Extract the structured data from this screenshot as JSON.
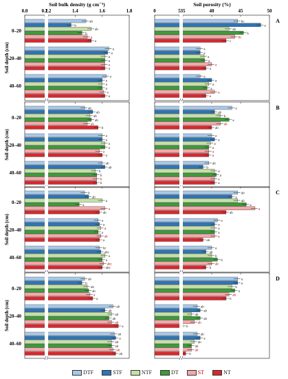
{
  "chart_data": {
    "type": "bar",
    "orientation": "horizontal",
    "top_axis_titles": {
      "left": "Soil bulk density (g cm⁻³)",
      "right": "Soil porosity (%)"
    },
    "ylabel": "Soil depth (cm)",
    "categories": [
      "0–20",
      "20–40",
      "40–60"
    ],
    "treatments": [
      "DTF",
      "STF",
      "NTF",
      "DT",
      "ST",
      "NT"
    ],
    "colors": {
      "DTF": "#a9c9e8",
      "STF": "#2e75b6",
      "NTF": "#c5e0a5",
      "DT": "#3f9a3a",
      "ST": "#f4a8a8",
      "NT": "#d7282f"
    },
    "label_colors": {
      "DTF": "#1a1a1a",
      "STF": "#1a1a1a",
      "NTF": "#1a1a1a",
      "DT": "#1a1a1a",
      "ST": "#c00000",
      "NT": "#1a1a1a"
    },
    "bulk_density_axis": {
      "ticks": [
        "0.0",
        "0.2",
        "1.2",
        "1.4",
        "1.6",
        "1.8"
      ],
      "break_between": [
        "0.2",
        "1.2"
      ]
    },
    "porosity_axis": {
      "ticks": [
        "0",
        "5",
        "35",
        "40",
        "45",
        "50"
      ],
      "break_between": [
        "5",
        "35"
      ]
    },
    "panels": [
      {
        "label": "A",
        "bulk_density": {
          "0–20": {
            "values": [
              1.48,
              1.37,
              1.52,
              1.45,
              1.49,
              1.52
            ],
            "letters": [
              "ab",
              "b",
              "ab",
              "b",
              "a",
              "a"
            ]
          },
          "20–40": {
            "values": [
              1.65,
              1.64,
              1.62,
              1.62,
              1.62,
              1.62
            ],
            "letters": [
              "a",
              "a",
              "a",
              "a",
              "a",
              "a"
            ]
          },
          "40–60": {
            "values": [
              1.63,
              1.6,
              1.6,
              1.6,
              1.61,
              1.62
            ],
            "letters": [
              "a",
              "a",
              "a",
              "a",
              "a",
              "a"
            ]
          }
        },
        "porosity": {
          "0–20": {
            "values": [
              44.5,
              48.5,
              43.0,
              45.5,
              44.0,
              42.5
            ],
            "letters": [
              "bc",
              "a",
              "ab",
              "b",
              "bc",
              "c"
            ]
          },
          "20–40": {
            "values": [
              38.0,
              38.0,
              38.7,
              38.8,
              40.0,
              39.0
            ],
            "letters": [
              "a",
              "a",
              "a",
              "a",
              "a",
              "a"
            ]
          },
          "40–60": {
            "values": [
              38.0,
              40.0,
              39.5,
              39.2,
              40.5,
              39.0
            ],
            "letters": [
              "a",
              "a",
              "a",
              "a",
              "a",
              "a"
            ]
          }
        }
      },
      {
        "label": "B",
        "bulk_density": {
          "0–20": {
            "values": [
              1.47,
              1.53,
              1.51,
              1.52,
              1.49,
              1.57
            ],
            "letters": [
              "ab",
              "ab",
              "ab",
              "ab",
              "ab",
              "b"
            ]
          },
          "20–40": {
            "values": [
              1.6,
              1.6,
              1.62,
              1.62,
              1.58,
              1.6
            ],
            "letters": [
              "a",
              "a",
              "a",
              "a",
              "a",
              "a"
            ]
          },
          "40–60": {
            "values": [
              1.6,
              1.62,
              1.55,
              1.56,
              1.56,
              1.56
            ],
            "letters": [
              "ab",
              "ab",
              "b",
              "b",
              "b",
              "b"
            ]
          }
        },
        "porosity": {
          "0–20": {
            "values": [
              43.5,
              40.5,
              41.5,
              43.0,
              41.5,
              40.0
            ],
            "letters": [
              "a",
              "ab",
              "b",
              "a",
              "ab",
              "ab"
            ]
          },
          "20–40": {
            "values": [
              40.0,
              40.5,
              39.8,
              39.5,
              39.5,
              39.5
            ],
            "letters": [
              "a",
              "a",
              "a",
              "a",
              "a",
              "a"
            ]
          },
          "40–60": {
            "values": [
              39.5,
              38.5,
              40.5,
              40.8,
              40.5,
              40.5
            ],
            "letters": [
              "ab",
              "b",
              "a",
              "a",
              "a",
              "a"
            ]
          }
        }
      },
      {
        "label": "C",
        "bulk_density": {
          "0–20": {
            "values": [
              1.47,
              1.5,
              1.6,
              1.43,
              1.62,
              1.58
            ],
            "letters": [
              "b",
              "ab",
              "a",
              "a",
              "a",
              "ab"
            ]
          },
          "20–40": {
            "values": [
              1.57,
              1.58,
              1.59,
              1.57,
              1.59,
              1.58
            ],
            "letters": [
              "a",
              "a",
              "a",
              "a",
              "ab",
              "a"
            ]
          },
          "40–60": {
            "values": [
              1.58,
              1.59,
              1.62,
              1.6,
              1.61,
              1.6
            ],
            "letters": [
              "bc",
              "abc",
              "a",
              "a",
              "abc",
              "abc"
            ]
          }
        },
        "porosity": {
          "0–20": {
            "values": [
              44.5,
              43.5,
              44.5,
              46.0,
              47.5,
              42.5
            ],
            "letters": [
              "ab",
              "a",
              "ab",
              "a",
              "a",
              "ab"
            ]
          },
          "20–40": {
            "values": [
              41.0,
              40.5,
              40.5,
              40.5,
              40.5,
              38.5
            ],
            "letters": [
              "a",
              "a",
              "a",
              "a",
              "a",
              "ab"
            ]
          },
          "40–60": {
            "values": [
              40.0,
              39.0,
              40.0,
              41.0,
              40.0,
              39.0
            ],
            "letters": [
              "a",
              "ab",
              "b",
              "b",
              "ab",
              "b"
            ]
          }
        }
      },
      {
        "label": "D",
        "bulk_density": {
          "0–20": {
            "values": [
              1.47,
              1.45,
              1.49,
              1.5,
              1.51,
              1.53
            ],
            "letters": [
              "ab",
              "b",
              "ab",
              "ab",
              "a",
              "a"
            ]
          },
          "20–40": {
            "values": [
              1.68,
              1.62,
              1.67,
              1.65,
              1.67,
              1.72
            ],
            "letters": [
              "ab",
              "ab",
              "ab",
              "ab",
              "ab",
              "a"
            ]
          },
          "40–60": {
            "values": [
              1.69,
              1.7,
              1.67,
              1.67,
              1.68,
              1.7
            ],
            "letters": [
              "ab",
              "a",
              "ab",
              "ab",
              "ab",
              "ab"
            ]
          }
        },
        "porosity": {
          "0–20": {
            "values": [
              44.5,
              44.5,
              43.5,
              44.0,
              43.0,
              42.5
            ],
            "letters": [
              "a",
              "a",
              "b",
              "a",
              "ab",
              "b"
            ]
          },
          "20–40": {
            "values": [
              37.5,
              38.0,
              36.5,
              38.0,
              37.0,
              35.0
            ],
            "letters": [
              "ab",
              "ab",
              "ab",
              "ab",
              "ab",
              "b"
            ]
          },
          "40–60": {
            "values": [
              37.5,
              38.0,
              37.0,
              36.5,
              36.5,
              35.5
            ],
            "letters": [
              "ab",
              "a",
              "ab",
              "ab",
              "ab",
              "b"
            ]
          }
        }
      }
    ]
  }
}
